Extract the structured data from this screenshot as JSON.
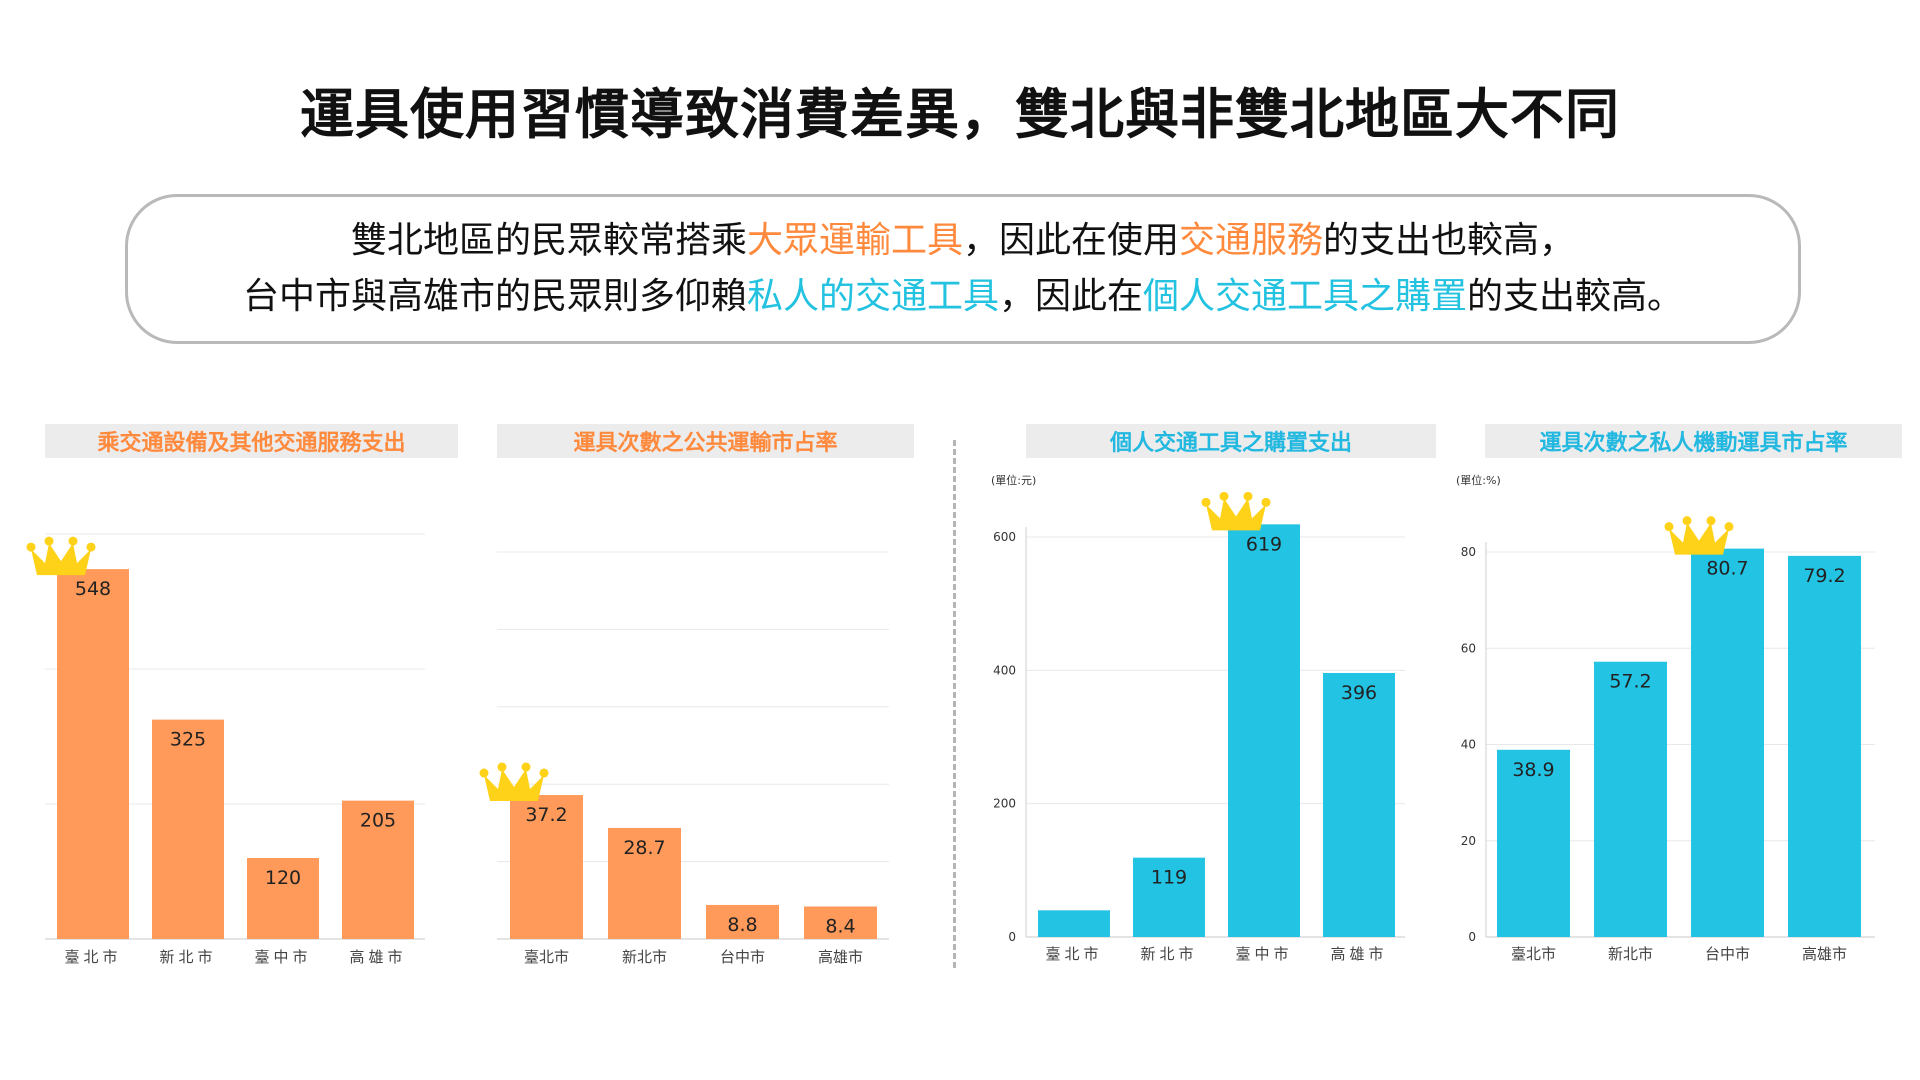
{
  "title": "運具使用習慣導致消費差異，雙北與非雙北地區大不同",
  "summary": {
    "line1": [
      {
        "text": "雙北地區的民眾較常搭乘",
        "color": ""
      },
      {
        "text": "大眾運輸工具",
        "color": "orange"
      },
      {
        "text": "，因此在使用",
        "color": ""
      },
      {
        "text": "交通服務",
        "color": "orange"
      },
      {
        "text": "的支出也較高，",
        "color": ""
      }
    ],
    "line2": [
      {
        "text": "台中市與高雄市的民眾則多仰賴",
        "color": ""
      },
      {
        "text": "私人的交通工具",
        "color": "cyan"
      },
      {
        "text": "，因此在",
        "color": ""
      },
      {
        "text": "個人交通工具之購置",
        "color": "cyan"
      },
      {
        "text": "的支出較高。",
        "color": ""
      }
    ]
  },
  "colors": {
    "orange": "#ff9a5a",
    "cyan": "#22c3e3",
    "crown": "#ffd21a"
  },
  "crown_icon": "crown-icon",
  "chart_data": [
    {
      "type": "bar",
      "title": "乘交通設備及其他交通服務支出",
      "unit": "",
      "categories": [
        "臺北市",
        "新北市",
        "臺中市",
        "高雄市"
      ],
      "values": [
        548,
        325,
        120,
        205
      ],
      "value_labels": [
        "548",
        "325",
        "120",
        "205"
      ],
      "ylim": [
        0,
        600
      ],
      "grid": true,
      "show_y_ticks": false,
      "y_ticks": [],
      "crown_index": 0,
      "color": "orange"
    },
    {
      "type": "bar",
      "title": "運具次數之公共運輸市占率",
      "unit": "",
      "categories": [
        "臺北市",
        "新北市",
        "台中市",
        "高雄市"
      ],
      "values": [
        37.2,
        28.7,
        8.8,
        8.4
      ],
      "value_labels": [
        "37.2",
        "28.7",
        "8.8",
        "8.4"
      ],
      "ylim": [
        0,
        100
      ],
      "grid": true,
      "show_y_ticks": false,
      "y_ticks": [],
      "crown_index": 0,
      "color": "orange"
    },
    {
      "type": "bar",
      "title": "個人交通工具之購置支出",
      "unit": "(單位:元)",
      "categories": [
        "臺北市",
        "新北市",
        "臺中市",
        "高雄市"
      ],
      "values": [
        40,
        119,
        619,
        396
      ],
      "value_labels": [
        "",
        "119",
        "619",
        "396"
      ],
      "ylim": [
        0,
        600
      ],
      "grid": true,
      "show_y_ticks": true,
      "y_ticks": [
        0,
        200,
        400,
        600
      ],
      "crown_index": 2,
      "color": "cyan"
    },
    {
      "type": "bar",
      "title": "運具次數之私人機動運具市占率",
      "unit": "(單位:%)",
      "categories": [
        "臺北市",
        "新北市",
        "台中市",
        "高雄市"
      ],
      "values": [
        38.9,
        57.2,
        80.7,
        79.2
      ],
      "value_labels": [
        "38.9",
        "57.2",
        "80.7",
        "79.2"
      ],
      "ylim": [
        0,
        80
      ],
      "grid": true,
      "show_y_ticks": true,
      "y_ticks": [
        0,
        20,
        40,
        60,
        80
      ],
      "crown_index": 2,
      "color": "cyan"
    }
  ]
}
